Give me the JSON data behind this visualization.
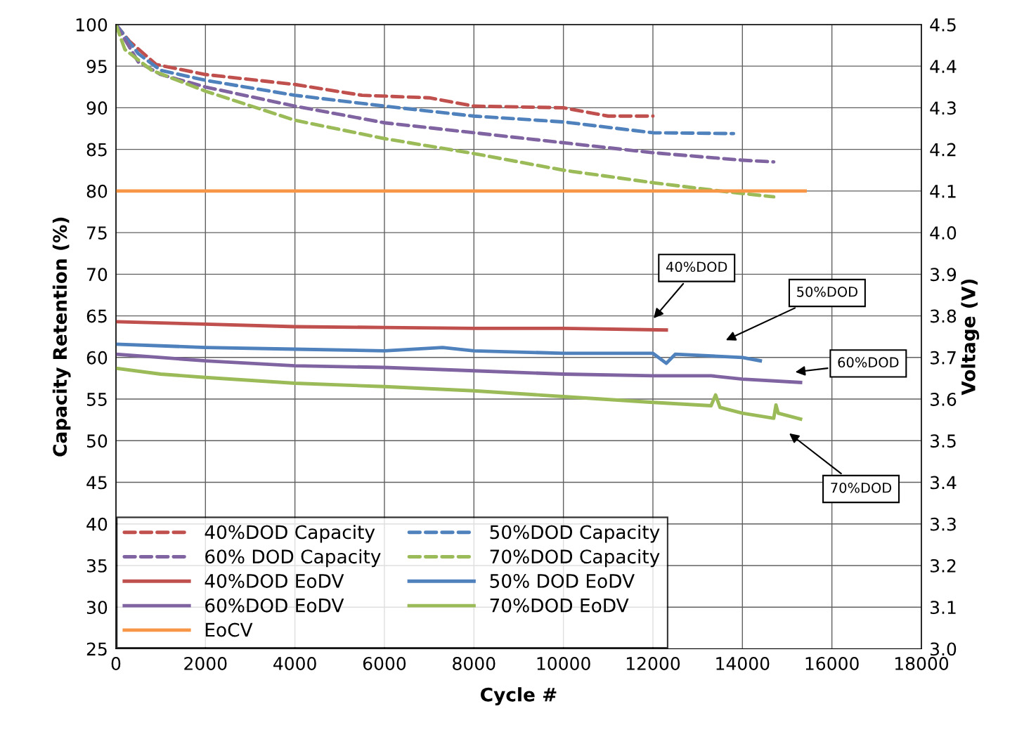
{
  "chart_data": {
    "type": "line",
    "xlabel": "Cycle #",
    "ylabel": "Capacity Retention (%)",
    "y2label": "Voltage (V)",
    "xlim": [
      0,
      18000
    ],
    "xticks": [
      0,
      2000,
      4000,
      6000,
      8000,
      10000,
      12000,
      14000,
      16000,
      18000
    ],
    "ylim": [
      25,
      100
    ],
    "yticks": [
      25,
      30,
      35,
      40,
      45,
      50,
      55,
      60,
      65,
      70,
      75,
      80,
      85,
      90,
      95,
      100
    ],
    "y2lim": [
      3.0,
      4.5
    ],
    "y2ticks": [
      {
        "value": 3.0,
        "label": "3.0"
      },
      {
        "value": 3.1,
        "label": "3.1"
      },
      {
        "value": 3.2,
        "label": "3.2"
      },
      {
        "value": 3.3,
        "label": "3.3"
      },
      {
        "value": 3.4,
        "label": "3.4"
      },
      {
        "value": 3.5,
        "label": "3.5"
      },
      {
        "value": 3.6,
        "label": "3.6"
      },
      {
        "value": 3.7,
        "label": "3.7"
      },
      {
        "value": 3.8,
        "label": "3.8"
      },
      {
        "value": 3.9,
        "label": "3.9"
      },
      {
        "value": 4.0,
        "label": "4.0"
      },
      {
        "value": 4.1,
        "label": "4.1"
      },
      {
        "value": 4.2,
        "label": "4.2"
      },
      {
        "value": 4.3,
        "label": "4.3"
      },
      {
        "value": 4.4,
        "label": "4.4"
      },
      {
        "value": 4.5,
        "label": "4.5"
      }
    ],
    "grid": true,
    "legend": "bottom left",
    "marker": "none",
    "series": [
      {
        "name": "40%DOD Capacity",
        "color": "#c0504d",
        "line_style": "dashed",
        "x": [
          0,
          300,
          900,
          2000,
          4000,
          5500,
          7000,
          8000,
          10000,
          11000,
          12000
        ],
        "values": [
          100,
          98,
          95.2,
          94,
          92.8,
          91.5,
          91.2,
          90.2,
          90,
          89,
          89
        ]
      },
      {
        "name": "50%DOD Capacity",
        "color": "#4f81bd",
        "line_style": "dashed",
        "x": [
          0,
          500,
          1000,
          2000,
          4000,
          6000,
          8000,
          10000,
          12000,
          13800
        ],
        "values": [
          100,
          96.5,
          94.5,
          93.3,
          91.5,
          90.2,
          89,
          88.3,
          87,
          86.9
        ]
      },
      {
        "name": "60% DOD Capacity",
        "color": "#8064a2",
        "line_style": "dashed",
        "x": [
          0,
          500,
          1000,
          2000,
          4000,
          6000,
          8000,
          10000,
          12000,
          14000,
          14700
        ],
        "values": [
          100,
          95.5,
          94,
          92.5,
          90.2,
          88.2,
          87,
          85.8,
          84.6,
          83.7,
          83.5
        ]
      },
      {
        "name": "70%DOD Capacity",
        "color": "#9bbb59",
        "line_style": "dashed",
        "x": [
          0,
          200,
          800,
          2000,
          4000,
          6000,
          8000,
          10000,
          12000,
          13500,
          14700
        ],
        "values": [
          100,
          97,
          94.5,
          92,
          88.5,
          86.3,
          84.5,
          82.5,
          81,
          80,
          79.3
        ]
      },
      {
        "name": "40%DOD EoDV",
        "color": "#c0504d",
        "line_style": "solid",
        "axis": "y2",
        "x": [
          0,
          2000,
          4000,
          6000,
          8000,
          10000,
          12300
        ],
        "values": [
          3.786,
          3.78,
          3.774,
          3.772,
          3.77,
          3.77,
          3.766
        ]
      },
      {
        "name": "50% DOD EoDV",
        "color": "#4f81bd",
        "line_style": "solid",
        "axis": "y2",
        "x": [
          0,
          2000,
          4000,
          6000,
          7300,
          8000,
          10000,
          12000,
          12300,
          12500,
          14000,
          14400
        ],
        "values": [
          3.732,
          3.724,
          3.72,
          3.716,
          3.724,
          3.716,
          3.71,
          3.71,
          3.686,
          3.708,
          3.7,
          3.692
        ]
      },
      {
        "name": "60%DOD EoDV",
        "color": "#8064a2",
        "line_style": "solid",
        "axis": "y2",
        "x": [
          0,
          2000,
          4000,
          6000,
          8000,
          10000,
          12000,
          13300,
          14000,
          15300
        ],
        "values": [
          3.708,
          3.692,
          3.68,
          3.676,
          3.668,
          3.66,
          3.656,
          3.656,
          3.648,
          3.64
        ]
      },
      {
        "name": "70%DOD EoDV",
        "color": "#9bbb59",
        "line_style": "solid",
        "axis": "y2",
        "x": [
          0,
          1000,
          2000,
          4000,
          6000,
          8000,
          10000,
          12000,
          13300,
          13400,
          13500,
          14000,
          14700,
          14750,
          14800,
          15300
        ],
        "values": [
          3.674,
          3.66,
          3.652,
          3.638,
          3.63,
          3.62,
          3.606,
          3.592,
          3.584,
          3.61,
          3.58,
          3.566,
          3.554,
          3.586,
          3.566,
          3.552
        ]
      },
      {
        "name": "EoCV",
        "color": "#f79646",
        "line_style": "solid",
        "axis": "y2",
        "x": [
          0,
          4500,
          15400
        ],
        "values": [
          4.1,
          4.1,
          4.1
        ]
      }
    ],
    "annotations": [
      "40%DOD",
      "50%DOD",
      "60%DOD",
      "70%DOD"
    ]
  }
}
